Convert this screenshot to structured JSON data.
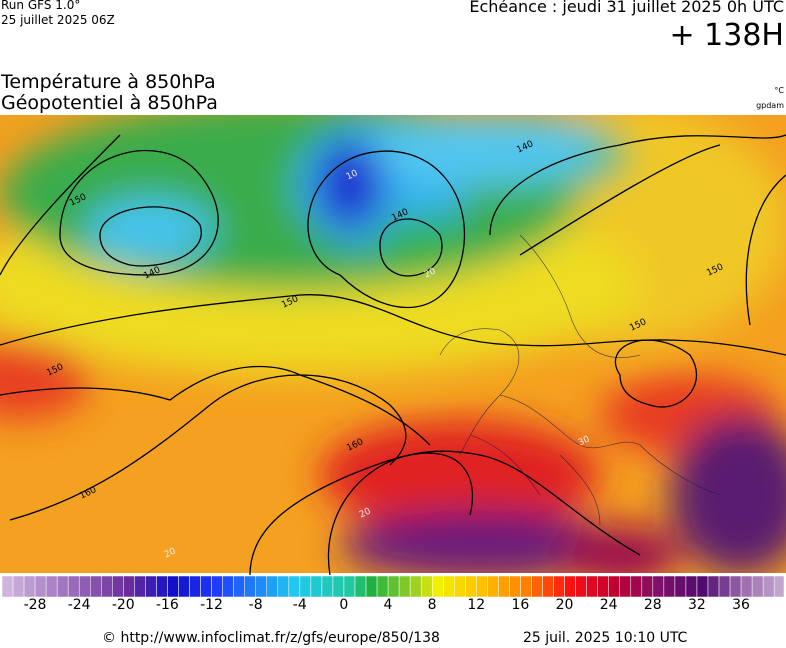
{
  "header": {
    "run": "Run GFS 1.0°",
    "run_date": "25 juillet 2025 06Z",
    "valid": "Echéance : jeudi 31 juillet 2025 0h UTC",
    "lead": "+ 138H",
    "title_1": "Température à 850hPa",
    "title_2": "Géopotentiel à 850hPa",
    "unit_1": "°C",
    "unit_2": "gpdam"
  },
  "map": {
    "contour_labels": [
      "150",
      "140",
      "150",
      "140",
      "140",
      "150",
      "150",
      "150",
      "160",
      "160",
      "10",
      "20",
      "20",
      "20",
      "30"
    ]
  },
  "colorbar": {
    "ticks": [
      -28,
      -24,
      -20,
      -16,
      -12,
      -8,
      -4,
      0,
      4,
      8,
      12,
      16,
      20,
      24,
      28,
      32,
      36
    ]
  },
  "footer": {
    "url": "© http://www.infoclimat.fr/z/gfs/europe/850/138",
    "generated": "25 juil. 2025 10:10 UTC"
  }
}
